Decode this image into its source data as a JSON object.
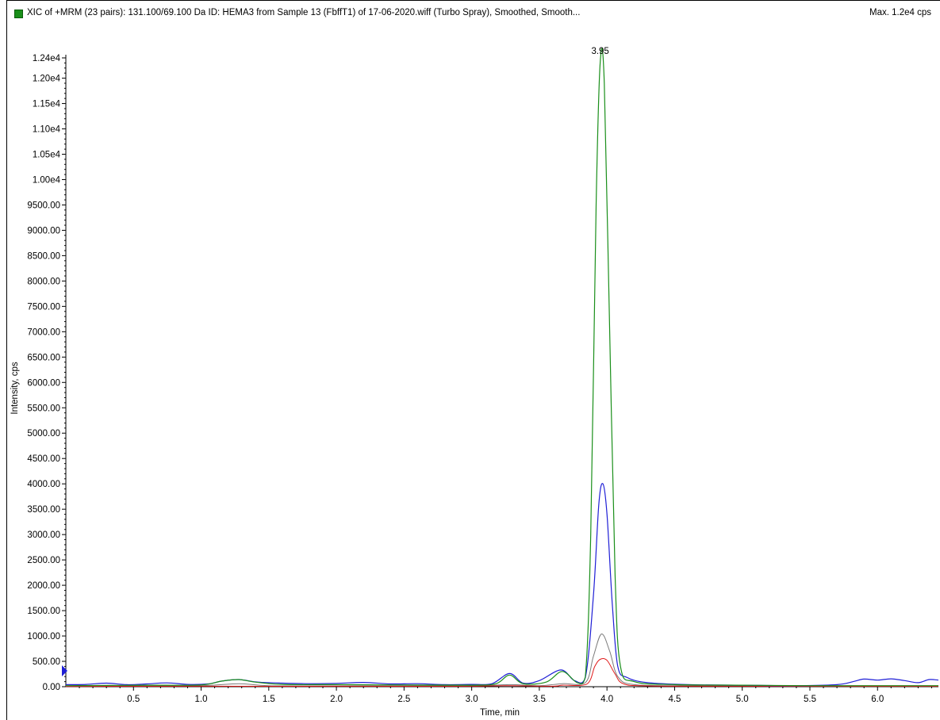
{
  "header": {
    "title": "XIC of +MRM (23 pairs): 131.100/69.100 Da ID: HEMA3 from Sample 13 (FbffT1) of 17-06-2020.wiff (Turbo Spray), Smoothed, Smooth...",
    "max_label": "Max. 1.2e4 cps",
    "legend_color": "#1a8f1a"
  },
  "chart_data": {
    "type": "line",
    "xlabel": "Time, min",
    "ylabel": "Intensity, cps",
    "xlim": [
      0.0,
      6.45
    ],
    "ylim": [
      0,
      12400
    ],
    "x_ticks": [
      0.5,
      1.0,
      1.5,
      2.0,
      2.5,
      3.0,
      3.5,
      4.0,
      4.5,
      5.0,
      5.5,
      6.0
    ],
    "x_tick_labels": [
      "0.5",
      "1.0",
      "1.5",
      "2.0",
      "2.5",
      "3.0",
      "3.5",
      "4.0",
      "4.5",
      "5.0",
      "5.5",
      "6.0"
    ],
    "y_ticks": [
      0,
      500,
      1000,
      1500,
      2000,
      2500,
      3000,
      3500,
      4000,
      4500,
      5000,
      5500,
      6000,
      6500,
      7000,
      7500,
      8000,
      8500,
      9000,
      9500,
      10000,
      10500,
      11000,
      11500,
      12000,
      12400
    ],
    "y_tick_labels": [
      "0.00",
      "500.00",
      "1000.00",
      "1500.00",
      "2000.00",
      "2500.00",
      "3000.00",
      "3500.00",
      "4000.00",
      "4500.00",
      "5000.00",
      "5500.00",
      "6000.00",
      "6500.00",
      "7000.00",
      "7500.00",
      "8000.00",
      "8500.00",
      "9000.00",
      "9500.00",
      "1.00e4",
      "1.05e4",
      "1.10e4",
      "1.15e4",
      "1.20e4",
      "1.24e4"
    ],
    "peak_annotation": {
      "x": 3.95,
      "y": 12350,
      "label": "3.95"
    },
    "series": [
      {
        "color": "#1a8f1a",
        "width": 1.2,
        "points": [
          [
            0.0,
            20
          ],
          [
            0.3,
            25
          ],
          [
            0.6,
            30
          ],
          [
            1.0,
            35
          ],
          [
            1.15,
            110
          ],
          [
            1.28,
            140
          ],
          [
            1.4,
            90
          ],
          [
            1.6,
            45
          ],
          [
            2.0,
            40
          ],
          [
            2.5,
            35
          ],
          [
            3.0,
            30
          ],
          [
            3.18,
            60
          ],
          [
            3.28,
            230
          ],
          [
            3.38,
            60
          ],
          [
            3.55,
            90
          ],
          [
            3.67,
            300
          ],
          [
            3.78,
            80
          ],
          [
            3.84,
            200
          ],
          [
            3.88,
            3000
          ],
          [
            3.92,
            9500
          ],
          [
            3.95,
            12300
          ],
          [
            3.98,
            11900
          ],
          [
            4.02,
            7000
          ],
          [
            4.06,
            2200
          ],
          [
            4.1,
            400
          ],
          [
            4.2,
            100
          ],
          [
            4.5,
            40
          ],
          [
            5.0,
            30
          ],
          [
            5.5,
            20
          ],
          [
            6.0,
            20
          ],
          [
            6.45,
            20
          ]
        ]
      },
      {
        "color": "#1f1fd6",
        "width": 1.2,
        "points": [
          [
            0.0,
            40
          ],
          [
            0.15,
            45
          ],
          [
            0.3,
            70
          ],
          [
            0.45,
            40
          ],
          [
            0.6,
            55
          ],
          [
            0.75,
            75
          ],
          [
            0.9,
            45
          ],
          [
            1.05,
            55
          ],
          [
            1.15,
            110
          ],
          [
            1.28,
            140
          ],
          [
            1.42,
            90
          ],
          [
            1.6,
            70
          ],
          [
            1.8,
            60
          ],
          [
            2.0,
            65
          ],
          [
            2.2,
            85
          ],
          [
            2.4,
            55
          ],
          [
            2.6,
            60
          ],
          [
            2.8,
            40
          ],
          [
            3.0,
            45
          ],
          [
            3.15,
            60
          ],
          [
            3.28,
            260
          ],
          [
            3.38,
            70
          ],
          [
            3.5,
            120
          ],
          [
            3.66,
            330
          ],
          [
            3.76,
            120
          ],
          [
            3.84,
            180
          ],
          [
            3.9,
            1800
          ],
          [
            3.94,
            3600
          ],
          [
            3.97,
            4000
          ],
          [
            4.0,
            3400
          ],
          [
            4.04,
            1600
          ],
          [
            4.08,
            400
          ],
          [
            4.15,
            180
          ],
          [
            4.3,
            80
          ],
          [
            4.6,
            40
          ],
          [
            5.0,
            30
          ],
          [
            5.4,
            20
          ],
          [
            5.7,
            40
          ],
          [
            5.82,
            100
          ],
          [
            5.9,
            150
          ],
          [
            6.0,
            130
          ],
          [
            6.1,
            155
          ],
          [
            6.2,
            120
          ],
          [
            6.3,
            80
          ],
          [
            6.38,
            140
          ],
          [
            6.45,
            130
          ]
        ]
      },
      {
        "color": "#7a7a7a",
        "width": 1.0,
        "points": [
          [
            0.0,
            10
          ],
          [
            0.5,
            15
          ],
          [
            1.0,
            20
          ],
          [
            1.28,
            60
          ],
          [
            1.5,
            20
          ],
          [
            2.0,
            15
          ],
          [
            2.5,
            20
          ],
          [
            3.0,
            15
          ],
          [
            3.28,
            40
          ],
          [
            3.5,
            20
          ],
          [
            3.67,
            60
          ],
          [
            3.84,
            80
          ],
          [
            3.9,
            600
          ],
          [
            3.96,
            1040
          ],
          [
            4.02,
            700
          ],
          [
            4.08,
            200
          ],
          [
            4.2,
            40
          ],
          [
            4.6,
            20
          ],
          [
            5.0,
            15
          ],
          [
            6.0,
            10
          ],
          [
            6.45,
            10
          ]
        ]
      },
      {
        "color": "#e01a1a",
        "width": 1.0,
        "points": [
          [
            0.0,
            5
          ],
          [
            0.5,
            8
          ],
          [
            1.0,
            10
          ],
          [
            1.5,
            8
          ],
          [
            2.0,
            10
          ],
          [
            2.5,
            8
          ],
          [
            3.0,
            10
          ],
          [
            3.28,
            20
          ],
          [
            3.6,
            10
          ],
          [
            3.67,
            30
          ],
          [
            3.85,
            50
          ],
          [
            3.91,
            400
          ],
          [
            3.95,
            540
          ],
          [
            4.0,
            520
          ],
          [
            4.06,
            250
          ],
          [
            4.12,
            60
          ],
          [
            4.3,
            15
          ],
          [
            5.0,
            10
          ],
          [
            6.0,
            8
          ],
          [
            6.45,
            8
          ]
        ]
      }
    ]
  }
}
